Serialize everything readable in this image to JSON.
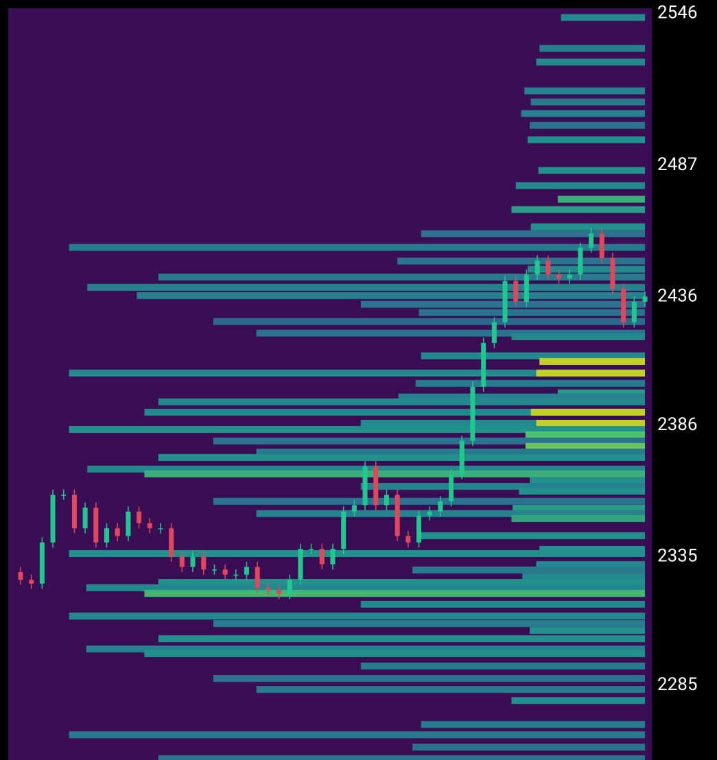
{
  "chart_data": {
    "type": "candlestick",
    "ylim": [
      2256,
      2548
    ],
    "yticks": [
      2546,
      2487,
      2436,
      2386,
      2335,
      2285
    ],
    "up_color": "#1fc98e",
    "down_color": "#e0465c",
    "background": "#3a0e55",
    "open": [
      2329,
      2326,
      2324.5,
      2340.5,
      2359,
      2359,
      2346,
      2354,
      2340.5,
      2346,
      2343,
      2352.5,
      2348,
      2346,
      2346,
      2335,
      2331,
      2335,
      2330,
      2330,
      2328,
      2328,
      2331,
      2323,
      2322,
      2320.5,
      2326,
      2338,
      2338,
      2332,
      2338,
      2352.5,
      2355,
      2370,
      2355,
      2359,
      2343,
      2340.5,
      2351,
      2352.5,
      2356.5,
      2367,
      2380,
      2401,
      2418,
      2426,
      2442,
      2434,
      2444.5,
      2450,
      2444.5,
      2443,
      2444.5,
      2455,
      2460.5,
      2451,
      2439,
      2426,
      2434
    ],
    "high": [
      2331,
      2328,
      2342.5,
      2361,
      2361,
      2361,
      2356,
      2356,
      2348,
      2348,
      2354.5,
      2354.5,
      2350,
      2348,
      2348,
      2337,
      2337,
      2337,
      2332,
      2332,
      2330,
      2333,
      2333,
      2325,
      2324,
      2328,
      2340,
      2340,
      2340,
      2340,
      2354.5,
      2357,
      2372,
      2372,
      2361,
      2361,
      2345,
      2353,
      2354.5,
      2358.5,
      2369,
      2382,
      2403,
      2420,
      2428,
      2444,
      2444,
      2446.5,
      2452,
      2452,
      2446.5,
      2446.5,
      2457,
      2462.5,
      2462.5,
      2453,
      2441,
      2436,
      2438
    ],
    "low": [
      2324,
      2322.5,
      2322.5,
      2338.5,
      2357,
      2344,
      2344,
      2338.5,
      2338.5,
      2341,
      2341,
      2346,
      2344,
      2344,
      2333,
      2329,
      2329,
      2328,
      2328,
      2326,
      2326,
      2326,
      2321,
      2320,
      2318.5,
      2318.5,
      2324,
      2336,
      2330,
      2330,
      2336,
      2350.5,
      2353,
      2353,
      2353,
      2341,
      2338.5,
      2338.5,
      2349,
      2350.5,
      2354.5,
      2365,
      2378,
      2399,
      2416,
      2424,
      2432,
      2432,
      2442.5,
      2442.5,
      2441,
      2441,
      2442.5,
      2453,
      2449,
      2437,
      2424,
      2424,
      2432
    ],
    "close": [
      2326,
      2324.5,
      2340.5,
      2359,
      2359,
      2346,
      2354,
      2340.5,
      2346,
      2343,
      2352.5,
      2348,
      2346,
      2346,
      2335,
      2331,
      2335,
      2330,
      2330,
      2328,
      2328,
      2331,
      2323,
      2322,
      2320.5,
      2326,
      2338,
      2338,
      2332,
      2338,
      2352.5,
      2355,
      2370,
      2355,
      2359,
      2343,
      2340.5,
      2351,
      2352.5,
      2356.5,
      2367,
      2380,
      2401,
      2418,
      2426,
      2442,
      2434,
      2444.5,
      2450,
      2444.5,
      2443,
      2444.5,
      2455,
      2460.5,
      2451,
      2439,
      2426,
      2434,
      2436
    ],
    "heatmap": {
      "colormap": [
        "#363d78",
        "#2c6a8d",
        "#22918c",
        "#4cc26c",
        "#e0d41a"
      ],
      "prices": [
        2544.4,
        2532.4,
        2527.1,
        2515.9,
        2511.6,
        2507.1,
        2502.5,
        2496.9,
        2485.0,
        2479.1,
        2473.8,
        2469.8,
        2463.1,
        2460.4,
        2455.1,
        2449.8,
        2446.6,
        2443.6,
        2439.6,
        2436.4,
        2433.0,
        2429.8,
        2426.3,
        2421.8,
        2420.4,
        2413.0,
        2410.8,
        2406.3,
        2406.3,
        2402.3,
        2398.6,
        2397.0,
        2395.1,
        2391.1,
        2391.1,
        2386.8,
        2386.8,
        2384.4,
        2382.3,
        2379.9,
        2377.8,
        2375.6,
        2373.5,
        2369.0,
        2367.1,
        2364.4,
        2362.3,
        2360.4,
        2356.5,
        2353.8,
        2351.7,
        2349.8,
        2343.1,
        2337.8,
        2336.2,
        2331.9,
        2329.8,
        2327.1,
        2325.0,
        2322.9,
        2320.7,
        2316.5,
        2311.9,
        2309.0,
        2306.3,
        2303.1,
        2299.1,
        2297.3,
        2292.5,
        2287.7,
        2283.4,
        2279.1,
        2269.8,
        2265.8,
        2261.0,
        2256.5
      ],
      "starts": [
        50.2,
        48.2,
        47.9,
        46.8,
        47.4,
        46.5,
        47.3,
        47.1,
        48.1,
        46.0,
        49.9,
        45.6,
        47.4,
        37.2,
        4.5,
        35.0,
        47.1,
        12.8,
        6.2,
        10.8,
        31.6,
        37.0,
        17.9,
        21.9,
        45.6,
        37.2,
        48.2,
        4.5,
        47.9,
        36.7,
        49.9,
        35.1,
        12.8,
        11.5,
        47.4,
        31.6,
        47.9,
        4.5,
        46.9,
        17.9,
        46.9,
        21.9,
        12.8,
        6.2,
        11.5,
        47.3,
        31.6,
        46.3,
        17.9,
        45.7,
        21.9,
        45.6,
        37.2,
        48.2,
        4.5,
        47.9,
        36.4,
        46.6,
        12.8,
        6.1,
        11.5,
        31.6,
        4.5,
        17.9,
        47.3,
        12.8,
        6.1,
        11.5,
        31.6,
        17.9,
        21.9,
        45.6,
        37.2,
        4.5,
        36.4,
        12.8
      ],
      "intensity": [
        0.45,
        0.4,
        0.45,
        0.4,
        0.35,
        0.4,
        0.3,
        0.5,
        0.5,
        0.45,
        0.65,
        0.55,
        0.5,
        0.3,
        0.35,
        0.3,
        0.45,
        0.35,
        0.4,
        0.4,
        0.3,
        0.3,
        0.25,
        0.3,
        0.45,
        0.45,
        0.95,
        0.45,
        0.95,
        0.35,
        0.55,
        0.4,
        0.45,
        0.45,
        0.95,
        0.45,
        0.95,
        0.5,
        0.75,
        0.3,
        0.8,
        0.35,
        0.5,
        0.45,
        0.65,
        0.5,
        0.4,
        0.5,
        0.3,
        0.55,
        0.4,
        0.6,
        0.5,
        0.5,
        0.5,
        0.45,
        0.35,
        0.45,
        0.5,
        0.45,
        0.7,
        0.45,
        0.45,
        0.35,
        0.5,
        0.5,
        0.4,
        0.5,
        0.35,
        0.3,
        0.35,
        0.5,
        0.35,
        0.35,
        0.3,
        0.3
      ]
    }
  }
}
